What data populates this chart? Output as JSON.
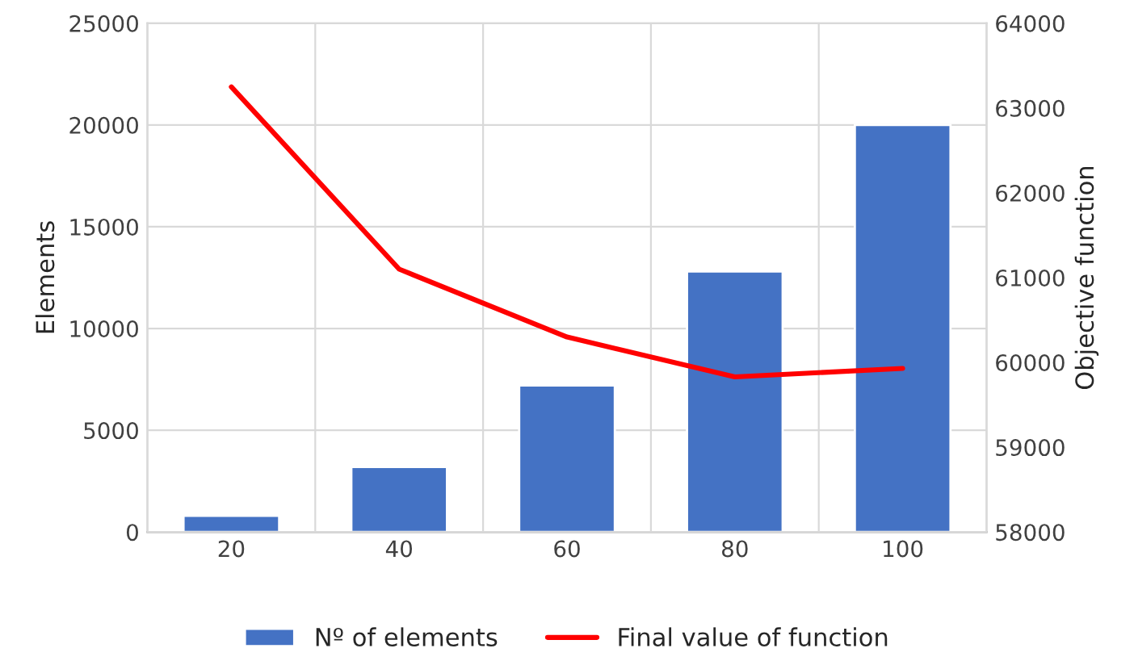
{
  "chart_data": {
    "type": "bar",
    "categories": [
      "20",
      "40",
      "60",
      "80",
      "100"
    ],
    "ylabel": "Elements",
    "y2label": "Objective function",
    "series": [
      {
        "name": "Nº of elements",
        "color": "#4472c4",
        "values": [
          800,
          3200,
          7200,
          12800,
          20000
        ]
      },
      {
        "name": "Final value of function",
        "type": "line",
        "axis": "y2",
        "color": "#ff0000",
        "values": [
          63250,
          61100,
          60300,
          59830,
          59930
        ]
      }
    ],
    "ylim": [
      0,
      25000
    ],
    "yticks": [
      0,
      5000,
      10000,
      15000,
      20000,
      25000
    ],
    "y2lim": [
      58000,
      64000
    ],
    "y2ticks": [
      58000,
      59000,
      60000,
      61000,
      62000,
      63000,
      64000
    ],
    "grid": true,
    "legend": "bottom",
    "marker": "none",
    "line_style": "solid"
  }
}
